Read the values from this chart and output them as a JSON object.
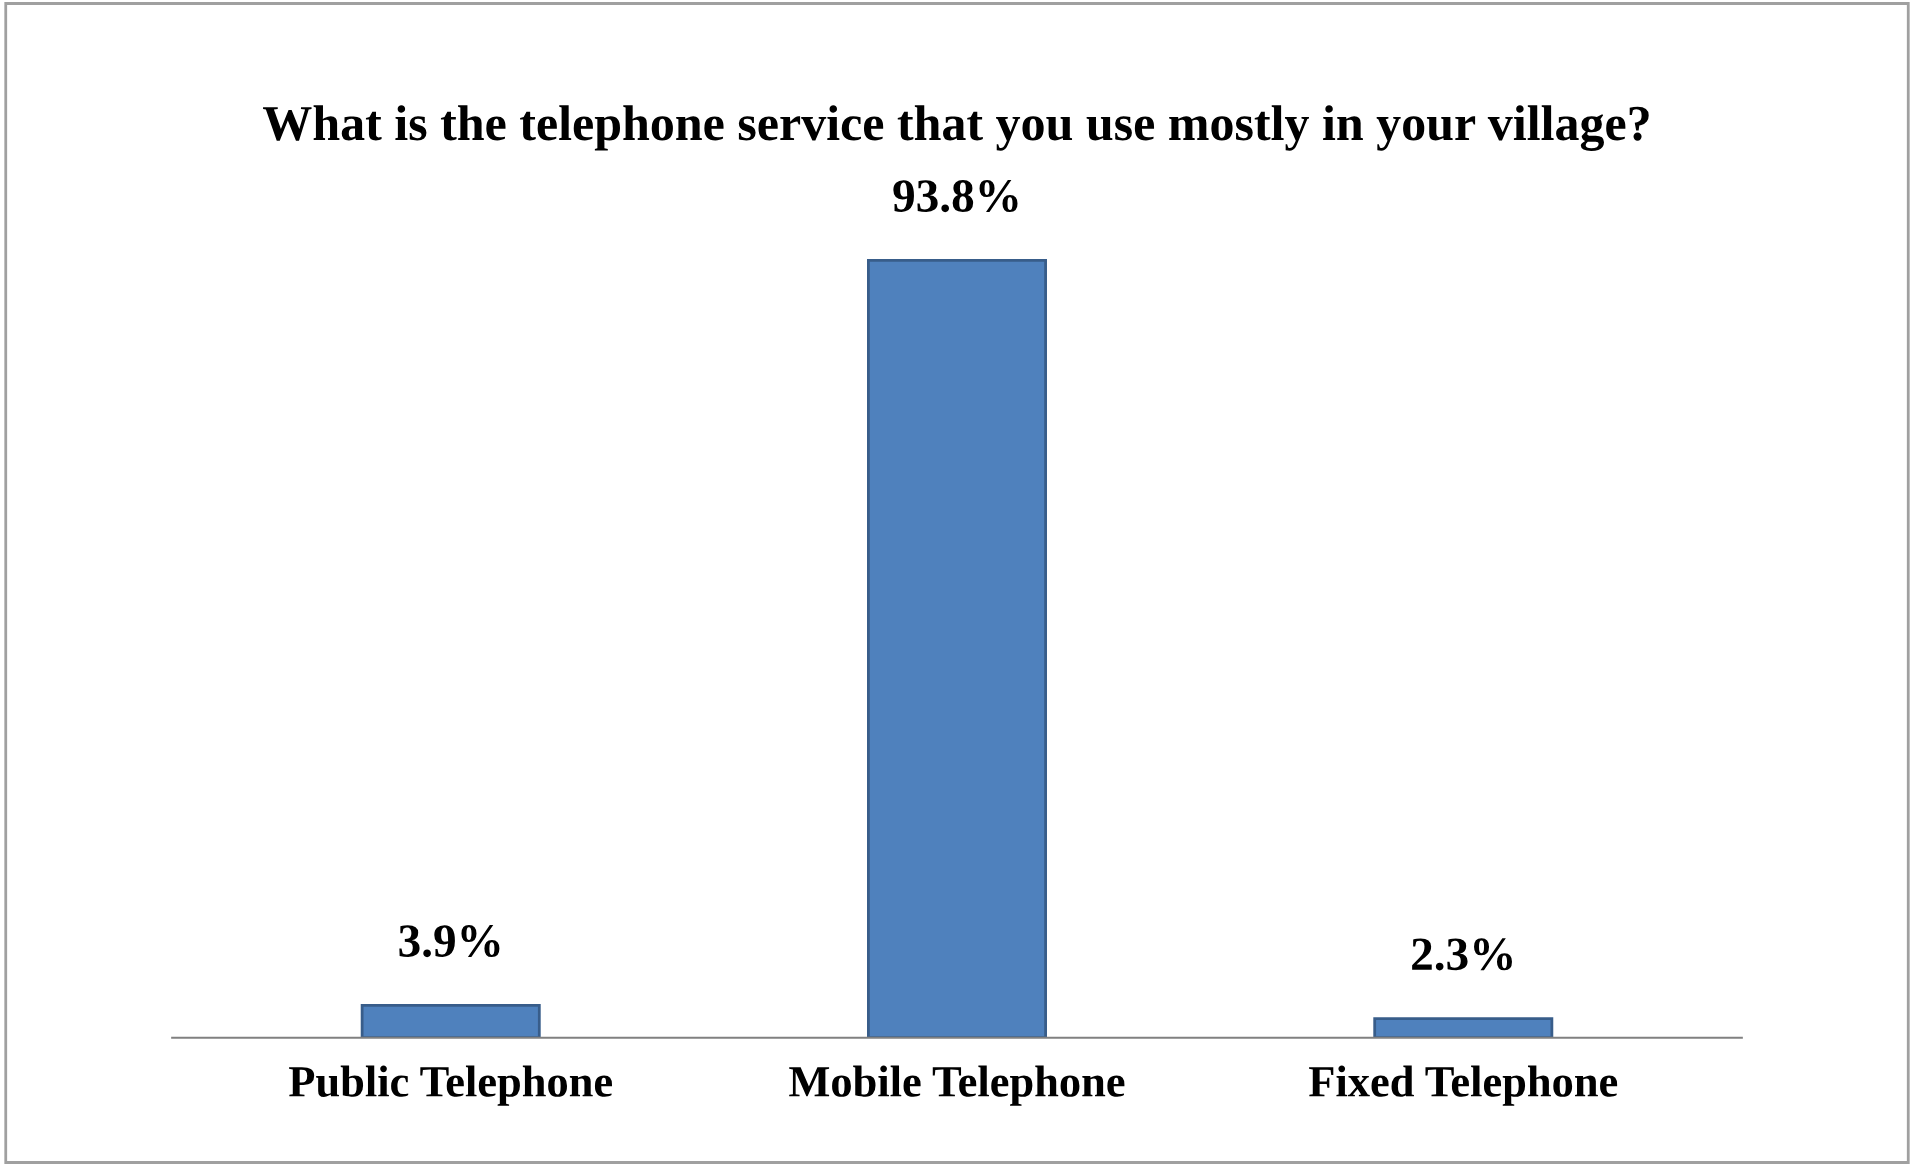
{
  "chart_data": {
    "type": "bar",
    "title": "What is the telephone service that you use mostly in your village?",
    "categories": [
      "Public Telephone",
      "Mobile Telephone",
      "Fixed Telephone"
    ],
    "values": [
      3.9,
      93.8,
      2.3
    ],
    "value_labels": [
      "3.9%",
      "93.8%",
      "2.3%"
    ],
    "color": "#4f81bd",
    "grid": false,
    "legend": false
  }
}
